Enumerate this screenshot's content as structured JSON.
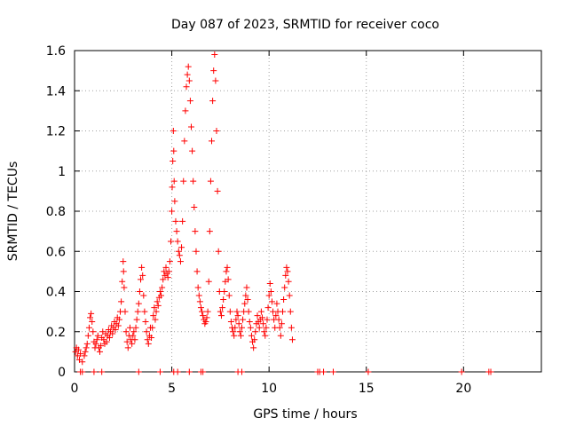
{
  "chart_data": {
    "type": "scatter",
    "title": "Day 087 of 2023, SRMTID for receiver coco",
    "xlabel": "GPS time / hours",
    "ylabel": "SRMTID / TECUs",
    "xlim": [
      0,
      24
    ],
    "ylim": [
      0,
      1.6
    ],
    "x_ticks": [
      0,
      5,
      10,
      15,
      20
    ],
    "x_tick_labels": [
      "0",
      "5",
      "10",
      "15",
      "20"
    ],
    "y_ticks": [
      0,
      0.2,
      0.4,
      0.6,
      0.8,
      1.0,
      1.2,
      1.4,
      1.6
    ],
    "y_tick_labels": [
      "0",
      "0.2",
      "0.4",
      "0.6",
      "0.8",
      "1",
      "1.2",
      "1.4",
      "1.6"
    ],
    "grid": true,
    "marker": "+",
    "marker_color": "#ff0000",
    "series": [
      {
        "name": "SRMTID",
        "points": [
          [
            0.05,
            0.1
          ],
          [
            0.1,
            0.12
          ],
          [
            0.15,
            0.08
          ],
          [
            0.2,
            0.11
          ],
          [
            0.25,
            0.06
          ],
          [
            0.3,
            0.09
          ],
          [
            0.4,
            0.05
          ],
          [
            0.5,
            0.08
          ],
          [
            0.55,
            0.1
          ],
          [
            0.6,
            0.12
          ],
          [
            0.65,
            0.14
          ],
          [
            0.7,
            0.18
          ],
          [
            0.75,
            0.22
          ],
          [
            0.8,
            0.27
          ],
          [
            0.85,
            0.29
          ],
          [
            0.9,
            0.25
          ],
          [
            0.95,
            0.2
          ],
          [
            1.0,
            0.15
          ],
          [
            1.05,
            0.12
          ],
          [
            1.1,
            0.14
          ],
          [
            1.15,
            0.16
          ],
          [
            1.2,
            0.18
          ],
          [
            1.25,
            0.12
          ],
          [
            1.3,
            0.1
          ],
          [
            1.35,
            0.13
          ],
          [
            1.4,
            0.17
          ],
          [
            1.45,
            0.2
          ],
          [
            1.5,
            0.16
          ],
          [
            1.55,
            0.14
          ],
          [
            1.6,
            0.19
          ],
          [
            1.65,
            0.15
          ],
          [
            1.7,
            0.18
          ],
          [
            1.75,
            0.21
          ],
          [
            1.8,
            0.17
          ],
          [
            1.85,
            0.2
          ],
          [
            1.9,
            0.23
          ],
          [
            1.95,
            0.19
          ],
          [
            2.0,
            0.22
          ],
          [
            2.05,
            0.25
          ],
          [
            2.1,
            0.21
          ],
          [
            2.15,
            0.24
          ],
          [
            2.2,
            0.27
          ],
          [
            2.25,
            0.23
          ],
          [
            2.3,
            0.26
          ],
          [
            2.35,
            0.3
          ],
          [
            2.4,
            0.35
          ],
          [
            2.45,
            0.45
          ],
          [
            2.5,
            0.55
          ],
          [
            2.52,
            0.5
          ],
          [
            2.55,
            0.42
          ],
          [
            2.6,
            0.3
          ],
          [
            2.65,
            0.2
          ],
          [
            2.7,
            0.15
          ],
          [
            2.75,
            0.12
          ],
          [
            2.8,
            0.18
          ],
          [
            2.85,
            0.22
          ],
          [
            2.9,
            0.16
          ],
          [
            2.95,
            0.14
          ],
          [
            3.0,
            0.18
          ],
          [
            3.05,
            0.2
          ],
          [
            3.1,
            0.16
          ],
          [
            3.15,
            0.22
          ],
          [
            3.2,
            0.26
          ],
          [
            3.25,
            0.3
          ],
          [
            3.3,
            0.34
          ],
          [
            3.35,
            0.4
          ],
          [
            3.4,
            0.46
          ],
          [
            3.45,
            0.52
          ],
          [
            3.5,
            0.48
          ],
          [
            3.55,
            0.38
          ],
          [
            3.6,
            0.3
          ],
          [
            3.65,
            0.25
          ],
          [
            3.7,
            0.2
          ],
          [
            3.75,
            0.16
          ],
          [
            3.8,
            0.14
          ],
          [
            3.85,
            0.18
          ],
          [
            3.9,
            0.22
          ],
          [
            3.95,
            0.17
          ],
          [
            4.0,
            0.22
          ],
          [
            4.05,
            0.28
          ],
          [
            4.1,
            0.32
          ],
          [
            4.15,
            0.26
          ],
          [
            4.2,
            0.3
          ],
          [
            4.25,
            0.35
          ],
          [
            4.3,
            0.33
          ],
          [
            4.35,
            0.37
          ],
          [
            4.4,
            0.4
          ],
          [
            4.45,
            0.38
          ],
          [
            4.5,
            0.42
          ],
          [
            4.55,
            0.46
          ],
          [
            4.6,
            0.5
          ],
          [
            4.65,
            0.48
          ],
          [
            4.7,
            0.52
          ],
          [
            4.75,
            0.49
          ],
          [
            4.8,
            0.47
          ],
          [
            4.85,
            0.5
          ],
          [
            4.9,
            0.55
          ],
          [
            4.95,
            0.65
          ],
          [
            5.0,
            0.8
          ],
          [
            5.02,
            0.92
          ],
          [
            5.05,
            1.05
          ],
          [
            5.08,
            1.2
          ],
          [
            5.1,
            1.1
          ],
          [
            5.12,
            0.95
          ],
          [
            5.15,
            0.85
          ],
          [
            5.2,
            0.75
          ],
          [
            5.25,
            0.7
          ],
          [
            5.3,
            0.65
          ],
          [
            5.35,
            0.6
          ],
          [
            5.4,
            0.58
          ],
          [
            5.45,
            0.55
          ],
          [
            5.5,
            0.62
          ],
          [
            5.55,
            0.75
          ],
          [
            5.6,
            0.95
          ],
          [
            5.65,
            1.15
          ],
          [
            5.7,
            1.3
          ],
          [
            5.75,
            1.42
          ],
          [
            5.8,
            1.48
          ],
          [
            5.85,
            1.52
          ],
          [
            5.9,
            1.45
          ],
          [
            5.95,
            1.35
          ],
          [
            6.0,
            1.22
          ],
          [
            6.05,
            1.1
          ],
          [
            6.1,
            0.95
          ],
          [
            6.15,
            0.82
          ],
          [
            6.2,
            0.7
          ],
          [
            6.25,
            0.6
          ],
          [
            6.3,
            0.5
          ],
          [
            6.35,
            0.42
          ],
          [
            6.4,
            0.38
          ],
          [
            6.45,
            0.35
          ],
          [
            6.5,
            0.32
          ],
          [
            6.55,
            0.3
          ],
          [
            6.6,
            0.28
          ],
          [
            6.65,
            0.26
          ],
          [
            6.7,
            0.24
          ],
          [
            6.75,
            0.25
          ],
          [
            6.8,
            0.27
          ],
          [
            6.85,
            0.3
          ],
          [
            6.9,
            0.45
          ],
          [
            6.95,
            0.7
          ],
          [
            7.0,
            0.95
          ],
          [
            7.05,
            1.15
          ],
          [
            7.1,
            1.35
          ],
          [
            7.15,
            1.5
          ],
          [
            7.2,
            1.58
          ],
          [
            7.25,
            1.45
          ],
          [
            7.3,
            1.2
          ],
          [
            7.35,
            0.9
          ],
          [
            7.4,
            0.6
          ],
          [
            7.45,
            0.4
          ],
          [
            7.5,
            0.3
          ],
          [
            7.55,
            0.28
          ],
          [
            7.6,
            0.32
          ],
          [
            7.65,
            0.36
          ],
          [
            7.7,
            0.4
          ],
          [
            7.75,
            0.45
          ],
          [
            7.8,
            0.5
          ],
          [
            7.85,
            0.52
          ],
          [
            7.9,
            0.46
          ],
          [
            7.95,
            0.38
          ],
          [
            8.0,
            0.3
          ],
          [
            8.05,
            0.25
          ],
          [
            8.1,
            0.22
          ],
          [
            8.15,
            0.2
          ],
          [
            8.2,
            0.18
          ],
          [
            8.25,
            0.22
          ],
          [
            8.3,
            0.26
          ],
          [
            8.35,
            0.3
          ],
          [
            8.4,
            0.28
          ],
          [
            8.45,
            0.24
          ],
          [
            8.5,
            0.2
          ],
          [
            8.55,
            0.18
          ],
          [
            8.6,
            0.22
          ],
          [
            8.65,
            0.26
          ],
          [
            8.7,
            0.3
          ],
          [
            8.75,
            0.34
          ],
          [
            8.8,
            0.38
          ],
          [
            8.85,
            0.42
          ],
          [
            8.9,
            0.36
          ],
          [
            8.95,
            0.3
          ],
          [
            9.0,
            0.25
          ],
          [
            9.05,
            0.22
          ],
          [
            9.1,
            0.18
          ],
          [
            9.15,
            0.15
          ],
          [
            9.2,
            0.12
          ],
          [
            9.25,
            0.16
          ],
          [
            9.3,
            0.2
          ],
          [
            9.35,
            0.24
          ],
          [
            9.4,
            0.28
          ],
          [
            9.45,
            0.25
          ],
          [
            9.5,
            0.22
          ],
          [
            9.55,
            0.26
          ],
          [
            9.6,
            0.3
          ],
          [
            9.65,
            0.27
          ],
          [
            9.7,
            0.24
          ],
          [
            9.75,
            0.2
          ],
          [
            9.8,
            0.18
          ],
          [
            9.85,
            0.22
          ],
          [
            9.9,
            0.26
          ],
          [
            9.95,
            0.32
          ],
          [
            10.0,
            0.38
          ],
          [
            10.05,
            0.44
          ],
          [
            10.1,
            0.4
          ],
          [
            10.15,
            0.35
          ],
          [
            10.2,
            0.3
          ],
          [
            10.25,
            0.26
          ],
          [
            10.3,
            0.22
          ],
          [
            10.35,
            0.28
          ],
          [
            10.4,
            0.34
          ],
          [
            10.45,
            0.3
          ],
          [
            10.5,
            0.26
          ],
          [
            10.55,
            0.22
          ],
          [
            10.6,
            0.18
          ],
          [
            10.65,
            0.24
          ],
          [
            10.7,
            0.3
          ],
          [
            10.75,
            0.36
          ],
          [
            10.8,
            0.42
          ],
          [
            10.85,
            0.48
          ],
          [
            10.9,
            0.52
          ],
          [
            10.95,
            0.5
          ],
          [
            11.0,
            0.45
          ],
          [
            11.05,
            0.38
          ],
          [
            11.1,
            0.3
          ],
          [
            11.15,
            0.22
          ],
          [
            11.2,
            0.16
          ],
          [
            0.3,
            0.0
          ],
          [
            0.4,
            0.0
          ],
          [
            1.0,
            0.0
          ],
          [
            1.4,
            0.0
          ],
          [
            3.3,
            0.0
          ],
          [
            4.4,
            0.0
          ],
          [
            5.1,
            0.0
          ],
          [
            5.3,
            0.0
          ],
          [
            5.9,
            0.0
          ],
          [
            6.5,
            0.0
          ],
          [
            6.6,
            0.0
          ],
          [
            8.4,
            0.0
          ],
          [
            8.6,
            0.0
          ],
          [
            12.5,
            0.0
          ],
          [
            12.6,
            0.0
          ],
          [
            12.8,
            0.0
          ],
          [
            13.3,
            0.0
          ],
          [
            15.1,
            0.0
          ],
          [
            19.9,
            0.0
          ],
          [
            21.3,
            0.0
          ],
          [
            21.4,
            0.0
          ]
        ]
      }
    ]
  }
}
